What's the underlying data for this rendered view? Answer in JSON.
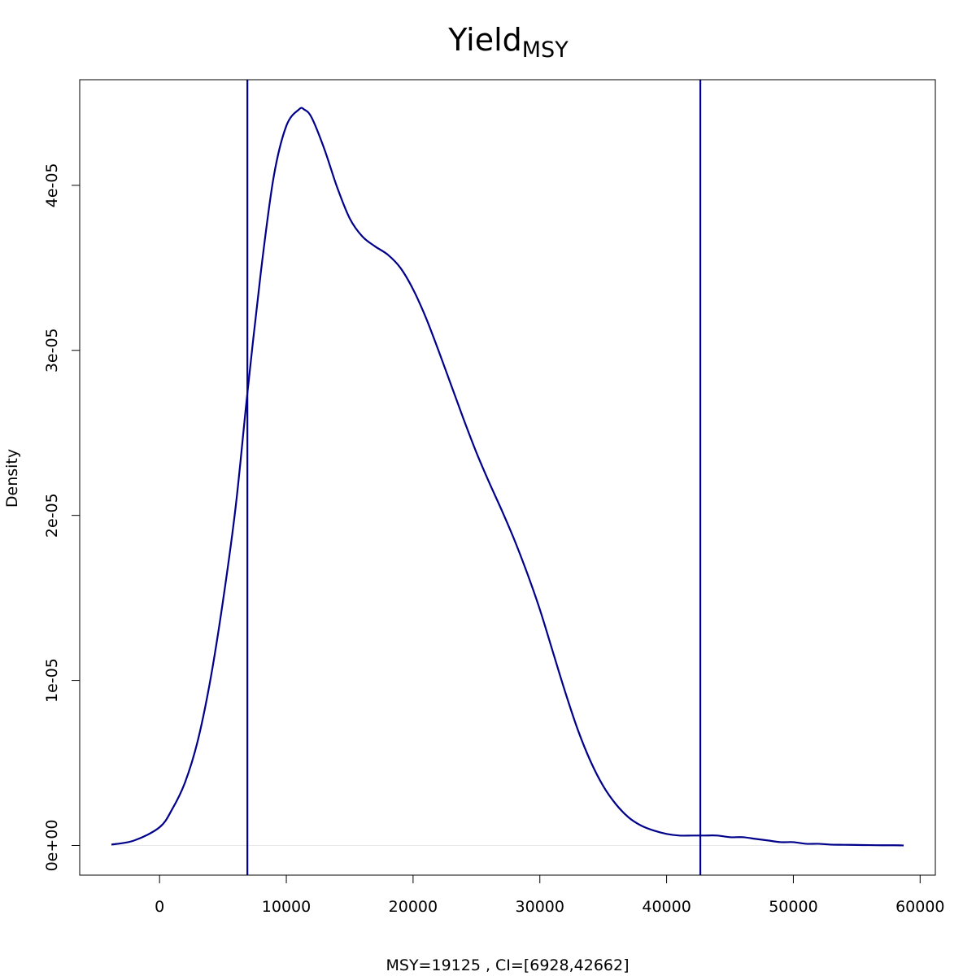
{
  "chart_data": {
    "type": "line",
    "title": {
      "main": "Yield",
      "subscript": "MSY"
    },
    "xlabel": "MSY=19125 , CI=[6928,42662]",
    "ylabel": "Density",
    "xlim": [
      -6300,
      61200
    ],
    "ylim": [
      -1.8e-06,
      4.64e-05
    ],
    "x_ticks": [
      0,
      10000,
      20000,
      30000,
      40000,
      50000,
      60000
    ],
    "x_tick_labels": [
      "0",
      "10000",
      "20000",
      "30000",
      "40000",
      "50000",
      "60000"
    ],
    "y_ticks": [
      0,
      1e-05,
      2e-05,
      3e-05,
      4e-05
    ],
    "y_tick_labels": [
      "0e+00",
      "1e-05",
      "2e-05",
      "3e-05",
      "4e-05"
    ],
    "grid": false,
    "line_color": "#00008b",
    "baseline_color": "#e8e8e8",
    "vlines": [
      6928,
      42662
    ],
    "series": [
      {
        "x": [
          -3800,
          -2000,
          0,
          1000,
          2000,
          3000,
          4000,
          5000,
          6000,
          6928,
          8000,
          9000,
          10000,
          11000,
          11400,
          12000,
          13000,
          14000,
          15000,
          16000,
          17000,
          18000,
          19000,
          20000,
          21000,
          22000,
          23000,
          24000,
          25000,
          26000,
          27000,
          28000,
          29000,
          30000,
          31000,
          32000,
          33000,
          34000,
          35000,
          36000,
          37000,
          38000,
          39000,
          40000,
          41000,
          42000,
          42662,
          43000,
          44000,
          45000,
          46000,
          47000,
          48000,
          49000,
          50000,
          51000,
          52000,
          53000,
          54000,
          55000,
          56000,
          57000,
          58000,
          58700
        ],
        "y": [
          5e-08,
          3e-07,
          1.1e-06,
          2.2e-06,
          3.8e-06,
          6.3e-06,
          1e-05,
          1.48e-05,
          2.05e-05,
          2.74e-05,
          3.48e-05,
          4.05e-05,
          4.36e-05,
          4.46e-05,
          4.46e-05,
          4.41e-05,
          4.22e-05,
          3.99e-05,
          3.8e-05,
          3.69e-05,
          3.63e-05,
          3.58e-05,
          3.5e-05,
          3.37e-05,
          3.2e-05,
          3e-05,
          2.79e-05,
          2.58e-05,
          2.38e-05,
          2.2e-05,
          2.03e-05,
          1.85e-05,
          1.65e-05,
          1.43e-05,
          1.18e-05,
          9.3e-06,
          7e-06,
          5.1e-06,
          3.6e-06,
          2.5e-06,
          1.7e-06,
          1.2e-06,
          9e-07,
          7e-07,
          6e-07,
          6e-07,
          6e-07,
          6e-07,
          6e-07,
          5e-07,
          5e-07,
          4e-07,
          3e-07,
          2e-07,
          2e-07,
          1e-07,
          1e-07,
          5e-08,
          4e-08,
          3e-08,
          2e-08,
          1e-08,
          1e-08,
          0.0
        ]
      }
    ]
  }
}
